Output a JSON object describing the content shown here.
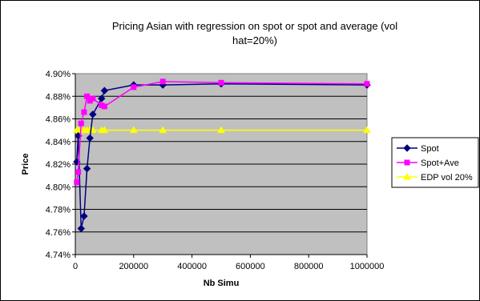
{
  "chart_data": {
    "type": "line",
    "title_line1": "Pricing Asian with regression on spot or spot and average (vol",
    "title_line2": "hat=20%)",
    "xlabel": "Nb Simu",
    "ylabel": "Price",
    "xlim": [
      0,
      1000000
    ],
    "ylim": [
      4.74,
      4.9
    ],
    "x_ticks": [
      0,
      200000,
      400000,
      600000,
      800000,
      1000000
    ],
    "x_tick_labels": [
      "0",
      "200000",
      "400000",
      "600000",
      "800000",
      "1000000"
    ],
    "y_ticks": [
      4.74,
      4.76,
      4.78,
      4.8,
      4.82,
      4.84,
      4.86,
      4.88,
      4.9
    ],
    "y_tick_labels": [
      "4.74%",
      "4.76%",
      "4.78%",
      "4.80%",
      "4.82%",
      "4.84%",
      "4.86%",
      "4.88%",
      "4.90%"
    ],
    "grid": "horizontal",
    "legend_position": "right",
    "plot_background": "#c0c0c0",
    "series": [
      {
        "name": "Spot",
        "color": "#000080",
        "marker": "diamond",
        "x": [
          5000,
          10000,
          20000,
          30000,
          40000,
          50000,
          60000,
          90000,
          100000,
          200000,
          300000,
          500000,
          1000000
        ],
        "y": [
          4.822,
          4.845,
          4.763,
          4.774,
          4.816,
          4.843,
          4.864,
          4.878,
          4.885,
          4.89,
          4.89,
          4.891,
          4.89
        ]
      },
      {
        "name": "Spot+Ave",
        "color": "#ff00ff",
        "marker": "square",
        "x": [
          5000,
          10000,
          20000,
          30000,
          40000,
          50000,
          60000,
          90000,
          100000,
          200000,
          300000,
          500000,
          1000000
        ],
        "y": [
          4.804,
          4.813,
          4.856,
          4.866,
          4.88,
          4.876,
          4.878,
          4.872,
          4.871,
          4.888,
          4.893,
          4.892,
          4.891
        ]
      },
      {
        "name": "EDP vol 20%",
        "color": "#ffff00",
        "marker": "triangle",
        "x": [
          5000,
          10000,
          20000,
          30000,
          40000,
          50000,
          60000,
          90000,
          100000,
          200000,
          300000,
          500000,
          1000000
        ],
        "y": [
          4.85,
          4.85,
          4.85,
          4.85,
          4.85,
          4.85,
          4.85,
          4.85,
          4.85,
          4.85,
          4.85,
          4.85,
          4.85
        ]
      }
    ]
  }
}
